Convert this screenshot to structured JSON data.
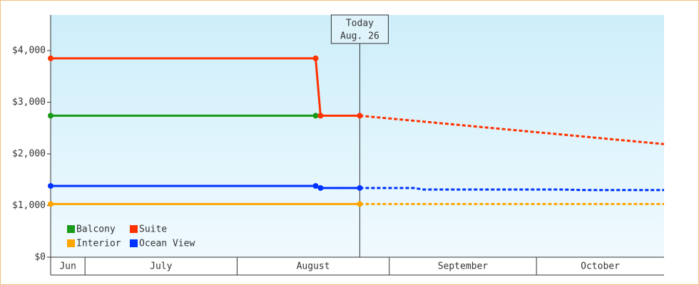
{
  "chart_data": {
    "type": "line",
    "xlim": [
      "06-24",
      "10-27"
    ],
    "xticks": [
      "07-01",
      "08-01",
      "09-01",
      "10-01"
    ],
    "month_labels": [
      "Jun",
      "July",
      "August",
      "September",
      "October"
    ],
    "ylim": [
      0,
      4690
    ],
    "yticks": [
      {
        "value": 0,
        "label": "$0"
      },
      {
        "value": 1000,
        "label": "$1,000"
      },
      {
        "value": 2000,
        "label": "$2,000"
      },
      {
        "value": 3000,
        "label": "$3,000"
      },
      {
        "value": 4000,
        "label": "$4,000"
      }
    ],
    "today": {
      "x": "08-26",
      "label": [
        "Today",
        "Aug. 26"
      ]
    },
    "legend": "bottom-left",
    "series": [
      {
        "name": "Balcony",
        "color": "#1a9a1a",
        "x": [
          "06-24",
          "08-17"
        ],
        "values": [
          2740,
          2740
        ]
      },
      {
        "name": "Suite",
        "color": "#ff3300",
        "x": [
          "06-24",
          "08-17",
          "08-18",
          "08-26",
          "10-27"
        ],
        "values": [
          3850,
          3850,
          2740,
          2740,
          2190
        ]
      },
      {
        "name": "Interior",
        "color": "#ffa500",
        "x": [
          "06-24",
          "08-26",
          "10-27"
        ],
        "values": [
          1030,
          1030,
          1030
        ]
      },
      {
        "name": "Ocean View",
        "color": "#0033ff",
        "x": [
          "06-24",
          "08-17",
          "08-18",
          "08-26",
          "09-06",
          "09-08",
          "10-06",
          "10-11",
          "10-27"
        ],
        "values": [
          1380,
          1380,
          1340,
          1340,
          1340,
          1310,
          1310,
          1300,
          1300
        ]
      }
    ]
  }
}
